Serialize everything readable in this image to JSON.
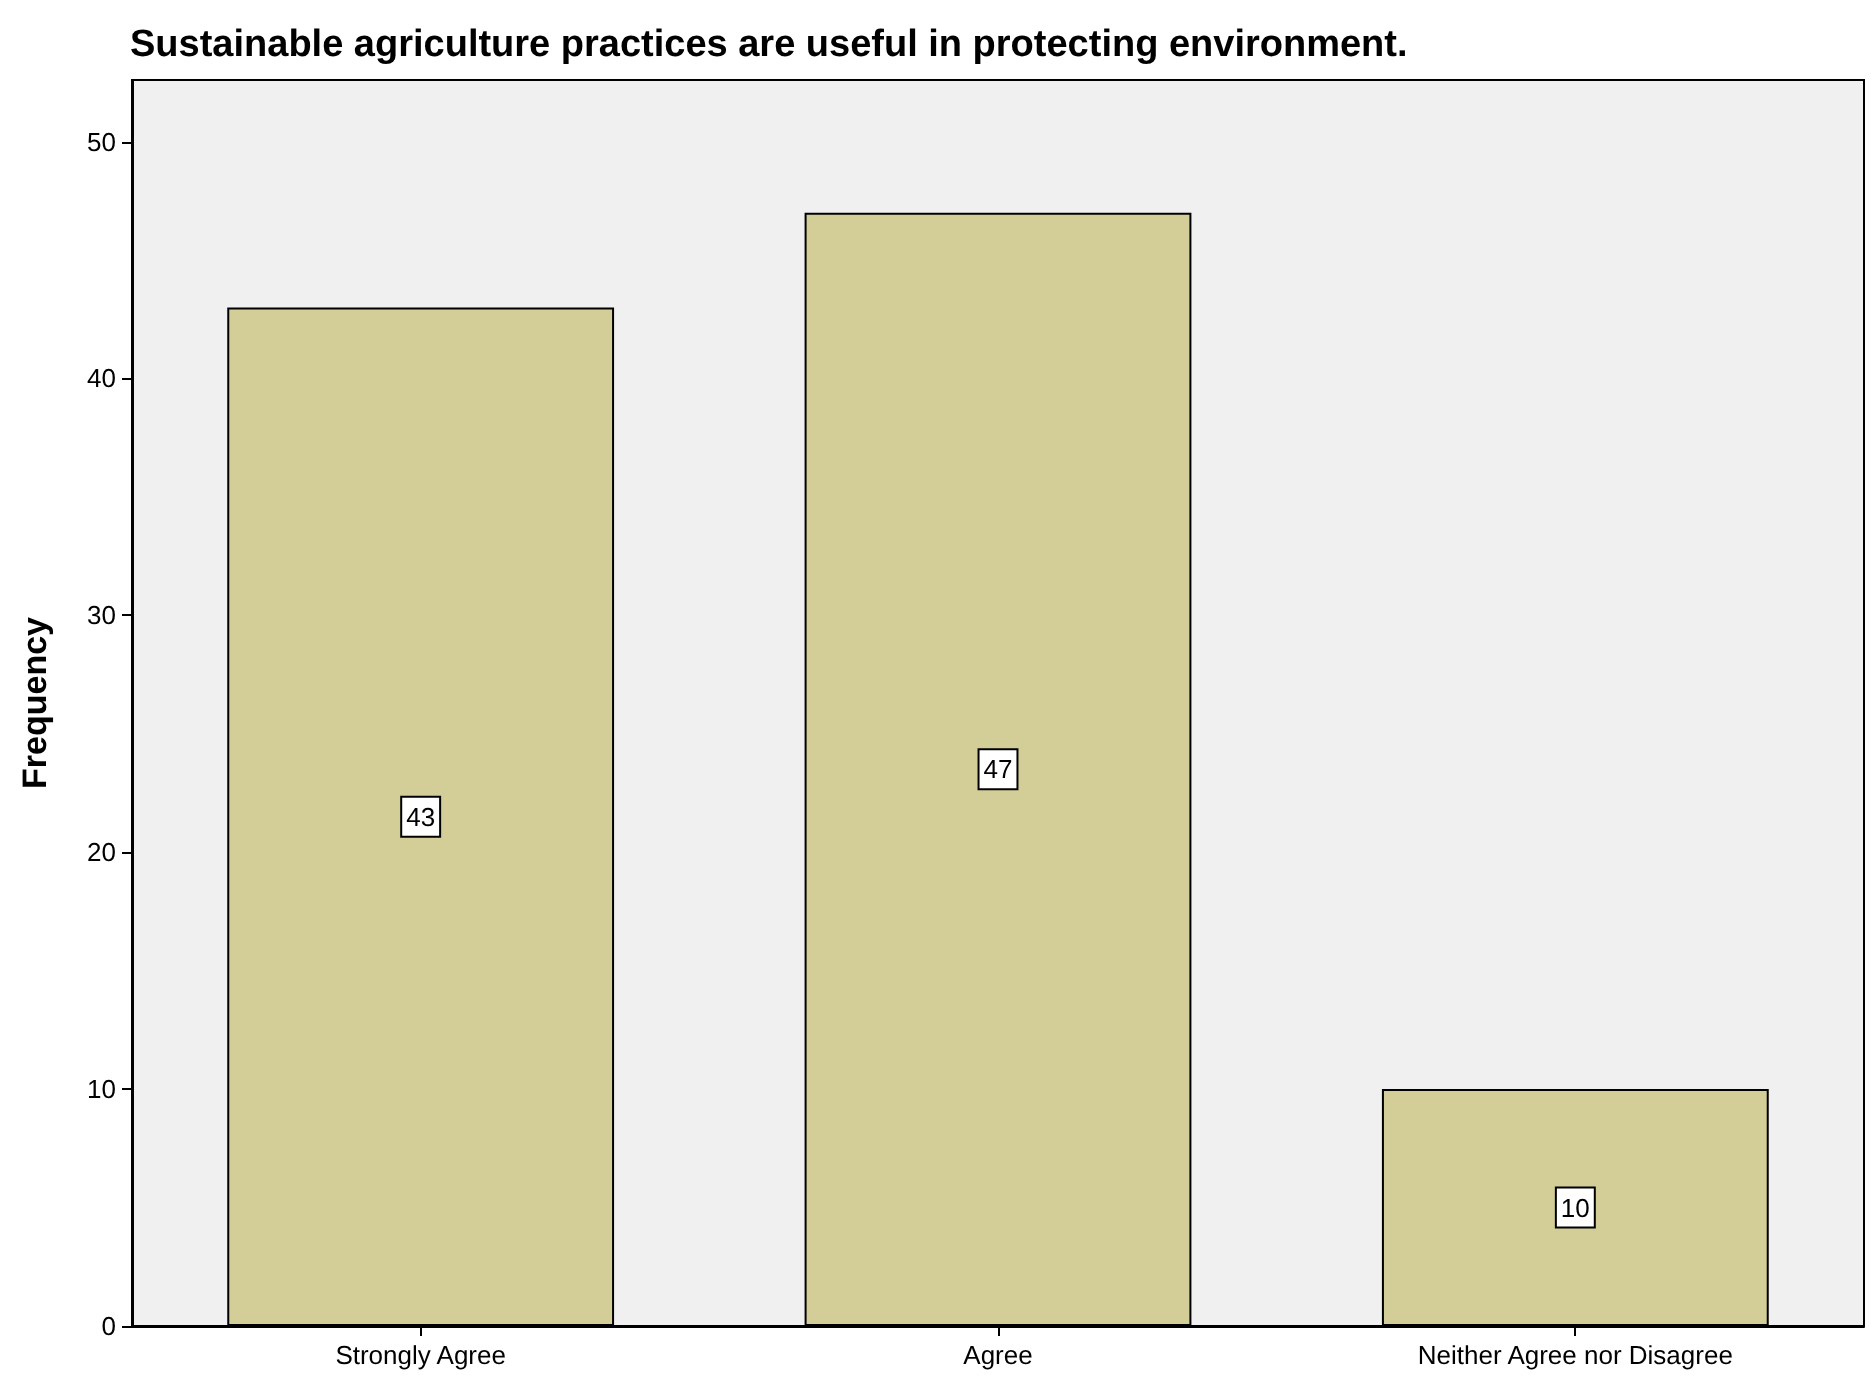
{
  "chart_data": {
    "type": "bar",
    "title": "Sustainable agriculture practices are useful in protecting environment.",
    "ylabel": "Frequency",
    "categories": [
      "Strongly Agree",
      "Agree",
      "Neither Agree nor Disagree"
    ],
    "values": [
      43,
      47,
      10
    ],
    "color": "#d3ce97",
    "ylim": [
      0,
      52.6
    ],
    "yticks": [
      0,
      10,
      20,
      30,
      40,
      50
    ],
    "grid": false,
    "data_labels": true
  }
}
